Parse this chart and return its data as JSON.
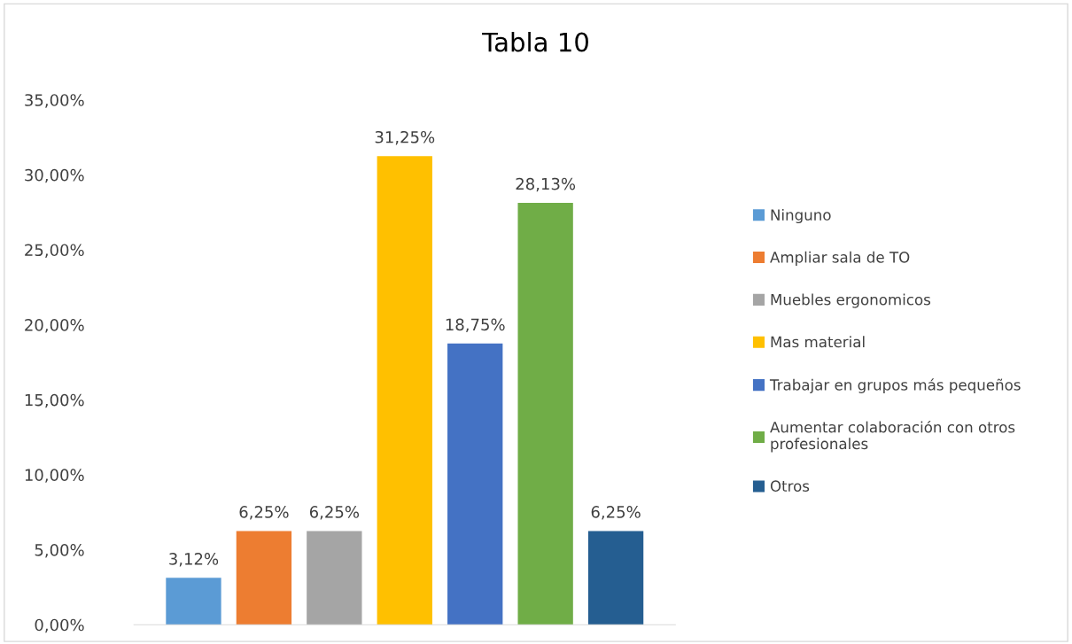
{
  "chart_data": {
    "type": "bar",
    "title": "Tabla 10",
    "categories": [
      null
    ],
    "series": [
      {
        "name": "Ninguno",
        "color": "#5b9bd5",
        "values": [
          3.12
        ],
        "value_labels": [
          "3,12%"
        ]
      },
      {
        "name": "Ampliar sala de TO",
        "color": "#ed7d31",
        "values": [
          6.25
        ],
        "value_labels": [
          "6,25%"
        ]
      },
      {
        "name": "Muebles ergonomicos",
        "color": "#a5a5a5",
        "values": [
          6.25
        ],
        "value_labels": [
          "6,25%"
        ]
      },
      {
        "name": "Mas material",
        "color": "#ffc000",
        "values": [
          31.25
        ],
        "value_labels": [
          "31,25%"
        ]
      },
      {
        "name": "Trabajar en grupos más pequeños",
        "color": "#4472c4",
        "values": [
          18.75
        ],
        "value_labels": [
          "18,75%"
        ]
      },
      {
        "name": "Aumentar colaboración con otros profesionales",
        "color": "#70ad47",
        "values": [
          28.13
        ],
        "value_labels": [
          "28,13%"
        ]
      },
      {
        "name": "Otros",
        "color": "#255e91",
        "values": [
          6.25
        ],
        "value_labels": [
          "6,25%"
        ]
      }
    ],
    "ylim": [
      0,
      35
    ],
    "yticks": [
      {
        "value": 0,
        "label": "0,00%"
      },
      {
        "value": 5,
        "label": "5,00%"
      },
      {
        "value": 10,
        "label": "10,00%"
      },
      {
        "value": 15,
        "label": "15,00%"
      },
      {
        "value": 20,
        "label": "20,00%"
      },
      {
        "value": 25,
        "label": "25,00%"
      },
      {
        "value": 30,
        "label": "30,00%"
      },
      {
        "value": 35,
        "label": "35,00%"
      }
    ],
    "grid": false,
    "legend": "right"
  }
}
